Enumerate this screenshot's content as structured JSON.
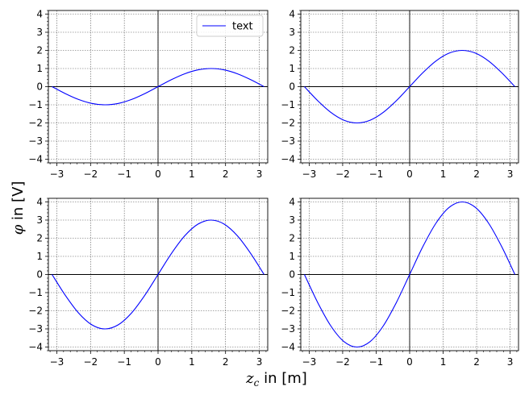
{
  "figure": {
    "xlabel_symbol": "z",
    "xlabel_subscript": "c",
    "xlabel_unit": " in [m]",
    "ylabel_symbol": "φ",
    "ylabel_unit": " in [V]"
  },
  "chart_data": [
    {
      "type": "line",
      "title": "",
      "xlim": [
        -3.25,
        3.25
      ],
      "ylim": [
        -4.2,
        4.2
      ],
      "xticks": [
        -3,
        -2,
        -1,
        0,
        1,
        2,
        3
      ],
      "yticks": [
        -4,
        -3,
        -2,
        -1,
        0,
        1,
        2,
        3,
        4
      ],
      "grid": true,
      "legend": "top-right",
      "series": [
        {
          "name": "text",
          "color": "#0000ff",
          "x": [
            -3.1416,
            -2.7489,
            -2.3562,
            -1.9635,
            -1.5708,
            -1.1781,
            -0.7854,
            -0.3927,
            0,
            0.3927,
            0.7854,
            1.1781,
            1.5708,
            1.9635,
            2.3562,
            2.7489,
            3.1416
          ],
          "y": [
            0,
            -0.383,
            -0.707,
            -0.924,
            -1,
            -0.924,
            -0.707,
            -0.383,
            0,
            0.383,
            0.707,
            0.924,
            1,
            0.924,
            0.707,
            0.383,
            0
          ]
        }
      ]
    },
    {
      "type": "line",
      "title": "",
      "xlim": [
        -3.25,
        3.25
      ],
      "ylim": [
        -4.2,
        4.2
      ],
      "xticks": [
        -3,
        -2,
        -1,
        0,
        1,
        2,
        3
      ],
      "yticks": [
        -4,
        -3,
        -2,
        -1,
        0,
        1,
        2,
        3,
        4
      ],
      "grid": true,
      "series": [
        {
          "color": "#0000ff",
          "x": [
            -3.1416,
            -2.7489,
            -2.3562,
            -1.9635,
            -1.5708,
            -1.1781,
            -0.7854,
            -0.3927,
            0,
            0.3927,
            0.7854,
            1.1781,
            1.5708,
            1.9635,
            2.3562,
            2.7489,
            3.1416
          ],
          "y": [
            0,
            -0.765,
            -1.414,
            -1.848,
            -2,
            -1.848,
            -1.414,
            -0.765,
            0,
            0.765,
            1.414,
            1.848,
            2,
            1.848,
            1.414,
            0.765,
            0
          ]
        }
      ]
    },
    {
      "type": "line",
      "title": "",
      "xlim": [
        -3.25,
        3.25
      ],
      "ylim": [
        -4.2,
        4.2
      ],
      "xticks": [
        -3,
        -2,
        -1,
        0,
        1,
        2,
        3
      ],
      "yticks": [
        -4,
        -3,
        -2,
        -1,
        0,
        1,
        2,
        3,
        4
      ],
      "grid": true,
      "series": [
        {
          "color": "#0000ff",
          "x": [
            -3.1416,
            -2.7489,
            -2.3562,
            -1.9635,
            -1.5708,
            -1.1781,
            -0.7854,
            -0.3927,
            0,
            0.3927,
            0.7854,
            1.1781,
            1.5708,
            1.9635,
            2.3562,
            2.7489,
            3.1416
          ],
          "y": [
            0,
            -1.148,
            -2.121,
            -2.772,
            -3,
            -2.772,
            -2.121,
            -1.148,
            0,
            1.148,
            2.121,
            2.772,
            3,
            2.772,
            2.121,
            1.148,
            0
          ]
        }
      ]
    },
    {
      "type": "line",
      "title": "",
      "xlim": [
        -3.25,
        3.25
      ],
      "ylim": [
        -4.2,
        4.2
      ],
      "xticks": [
        -3,
        -2,
        -1,
        0,
        1,
        2,
        3
      ],
      "yticks": [
        -4,
        -3,
        -2,
        -1,
        0,
        1,
        2,
        3,
        4
      ],
      "grid": true,
      "series": [
        {
          "color": "#0000ff",
          "x": [
            -3.1416,
            -2.7489,
            -2.3562,
            -1.9635,
            -1.5708,
            -1.1781,
            -0.7854,
            -0.3927,
            0,
            0.3927,
            0.7854,
            1.1781,
            1.5708,
            1.9635,
            2.3562,
            2.7489,
            3.1416
          ],
          "y": [
            0,
            -1.531,
            -2.828,
            -3.696,
            -4,
            -3.696,
            -2.828,
            -1.531,
            0,
            1.531,
            2.828,
            3.696,
            4,
            3.696,
            2.828,
            1.531,
            0
          ]
        }
      ]
    }
  ]
}
